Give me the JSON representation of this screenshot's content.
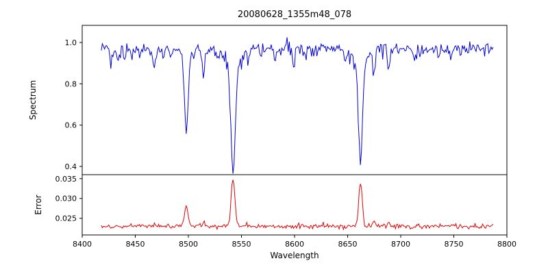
{
  "figure": {
    "title": "20080628_1355m48_078",
    "xlabel": "Wavelength"
  },
  "chart_data": [
    {
      "type": "line",
      "name": "spectrum",
      "title": "20080628_1355m48_078",
      "ylabel": "Spectrum",
      "color": "#0000d4",
      "xlim": [
        8400,
        8800
      ],
      "ylim": [
        0.36,
        1.083
      ],
      "yticks": {
        "values": [
          0.4,
          0.6,
          0.8,
          1.0
        ],
        "labels": [
          "0.4",
          "0.6",
          "0.8",
          "1.0"
        ]
      },
      "x_start": 8418,
      "x_end": 8787,
      "x_step": 1.0,
      "continuum": 0.97,
      "noise_sigma": 0.013,
      "dip_prob": 0.08,
      "dip_max": 0.05,
      "up_prob": 0.05,
      "up_max": 0.04,
      "seed": 1234,
      "absorption_lines": [
        [
          8498.0,
          0.34,
          1.6
        ],
        [
          8498.0,
          0.06,
          4.5
        ],
        [
          8542.1,
          0.5,
          1.9
        ],
        [
          8542.1,
          0.11,
          6.5
        ],
        [
          8662.1,
          0.47,
          1.8
        ],
        [
          8662.1,
          0.09,
          6.0
        ],
        [
          8427.0,
          0.05,
          1.0
        ],
        [
          8433.5,
          0.08,
          1.1
        ],
        [
          8440.0,
          0.05,
          1.0
        ],
        [
          8446.5,
          0.05,
          0.9
        ],
        [
          8468.0,
          0.1,
          1.2
        ],
        [
          8476.0,
          0.05,
          1.0
        ],
        [
          8483.0,
          0.04,
          0.9
        ],
        [
          8514.2,
          0.14,
          1.2
        ],
        [
          8519.0,
          0.04,
          0.9
        ],
        [
          8527.0,
          0.05,
          1.0
        ],
        [
          8556.0,
          0.05,
          1.0
        ],
        [
          8568.0,
          0.04,
          1.0
        ],
        [
          8582.0,
          0.06,
          1.0
        ],
        [
          8598.8,
          0.08,
          1.1
        ],
        [
          8611.0,
          0.05,
          1.0
        ],
        [
          8621.0,
          0.04,
          1.0
        ],
        [
          8648.0,
          0.05,
          1.0
        ],
        [
          8674.7,
          0.12,
          1.2
        ],
        [
          8688.6,
          0.11,
          1.1
        ],
        [
          8713.0,
          0.05,
          1.0
        ],
        [
          8736.0,
          0.04,
          1.0
        ],
        [
          8747.0,
          0.05,
          1.0
        ],
        [
          8757.0,
          0.04,
          1.0
        ]
      ]
    },
    {
      "type": "line",
      "name": "error",
      "ylabel": "Error",
      "xlabel": "Wavelength",
      "color": "#e00000",
      "xlim": [
        8400,
        8800
      ],
      "ylim": [
        0.0208,
        0.036
      ],
      "yticks": {
        "values": [
          0.025,
          0.03,
          0.035
        ],
        "labels": [
          "0.025",
          "0.030",
          "0.035"
        ]
      },
      "xticks": {
        "values": [
          8400,
          8450,
          8500,
          8550,
          8600,
          8650,
          8700,
          8750,
          8800
        ],
        "labels": [
          "8400",
          "8450",
          "8500",
          "8550",
          "8600",
          "8650",
          "8700",
          "8750",
          "8800"
        ]
      },
      "x_start": 8418,
      "x_end": 8787,
      "x_step": 1.0,
      "baseline": 0.023,
      "noise_sigma": 0.00028,
      "spike_prob": 0.05,
      "spike_max": 0.0009,
      "seed": 777,
      "emission_peaks": [
        [
          8498.0,
          0.005,
          1.6
        ],
        [
          8542.1,
          0.012,
          1.7
        ],
        [
          8662.1,
          0.0113,
          1.6
        ],
        [
          8514.2,
          0.0013,
          1.2
        ],
        [
          8674.7,
          0.0009,
          1.2
        ],
        [
          8688.6,
          0.001,
          1.2
        ]
      ]
    }
  ]
}
